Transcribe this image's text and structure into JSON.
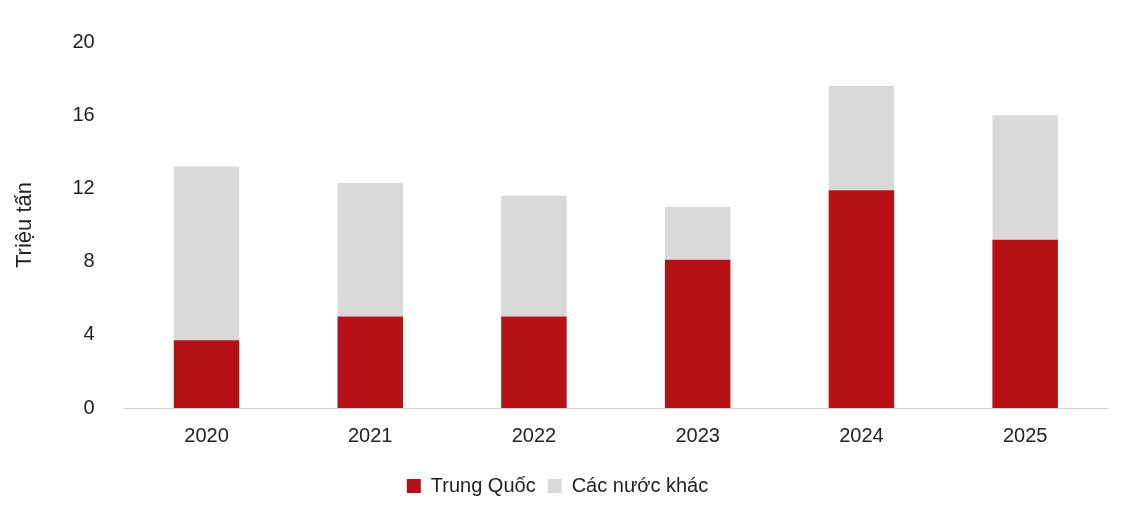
{
  "chart_data": {
    "type": "bar",
    "stacked": true,
    "ylabel": "Triệu tấn",
    "categories": [
      "2020",
      "2021",
      "2022",
      "2023",
      "2024",
      "2025"
    ],
    "series": [
      {
        "name": "Trung Quốc",
        "color": "#b51117",
        "values": [
          3.7,
          5.0,
          5.0,
          8.1,
          11.9,
          9.2
        ]
      },
      {
        "name": "Các nước khác",
        "color": "#d9d9d9",
        "values": [
          9.5,
          7.3,
          6.6,
          2.9,
          5.7,
          6.8
        ]
      }
    ],
    "ylim": [
      0,
      20
    ],
    "yticks": [
      0,
      4,
      8,
      12,
      16,
      20
    ],
    "grid": false,
    "legend": "bottom"
  }
}
